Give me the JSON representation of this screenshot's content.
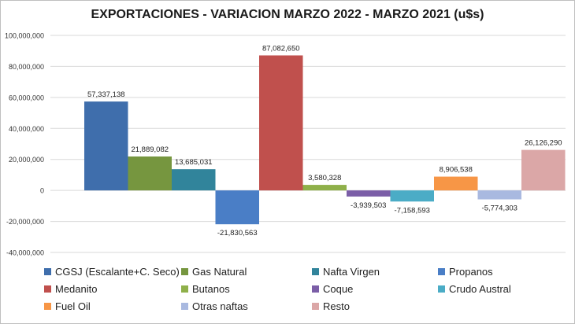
{
  "chart_data": {
    "type": "bar",
    "title": "EXPORTACIONES - VARIACION MARZO 2022 - MARZO 2021 (u$s)",
    "xlabel": "",
    "ylabel": "",
    "ylim": [
      -40000000,
      100000000
    ],
    "yticks": [
      100000000,
      80000000,
      60000000,
      40000000,
      20000000,
      0,
      -20000000,
      -40000000
    ],
    "ytick_labels": [
      "100,000,000",
      "80,000,000",
      "60,000,000",
      "40,000,000",
      "20,000,000",
      "0",
      "-20,000,000",
      "-40,000,000"
    ],
    "grid": true,
    "legend_position": "bottom",
    "series": [
      {
        "name": "CGSJ (Escalante+C. Seco)",
        "value": 57337138,
        "label": "57,337,138",
        "color": "#3f6eac"
      },
      {
        "name": "Gas Natural",
        "value": 21889082,
        "label": "21,889,082",
        "color": "#76963f"
      },
      {
        "name": "Nafta Virgen",
        "value": 13685031,
        "label": "13,685,031",
        "color": "#31849b"
      },
      {
        "name": "Propanos",
        "value": -21830563,
        "label": "-21,830,563",
        "color": "#4a7ec6"
      },
      {
        "name": "Medanito",
        "value": 87082650,
        "label": "87,082,650",
        "color": "#c0504d"
      },
      {
        "name": "Butanos",
        "value": 3580328,
        "label": "3,580,328",
        "color": "#8fb04a"
      },
      {
        "name": "Coque",
        "value": -3939503,
        "label": "-3,939,503",
        "color": "#7b5ea7"
      },
      {
        "name": "Crudo Austral",
        "value": -7158593,
        "label": "-7,158,593",
        "color": "#4bacc6"
      },
      {
        "name": "Fuel Oil",
        "value": 8906538,
        "label": "8,906,538",
        "color": "#f79646"
      },
      {
        "name": "Otras naftas",
        "value": -5774303,
        "label": "-5,774,303",
        "color": "#a9b9e0"
      },
      {
        "name": "Resto",
        "value": 26126290,
        "label": "26,126,290",
        "color": "#dba7a7"
      }
    ]
  }
}
